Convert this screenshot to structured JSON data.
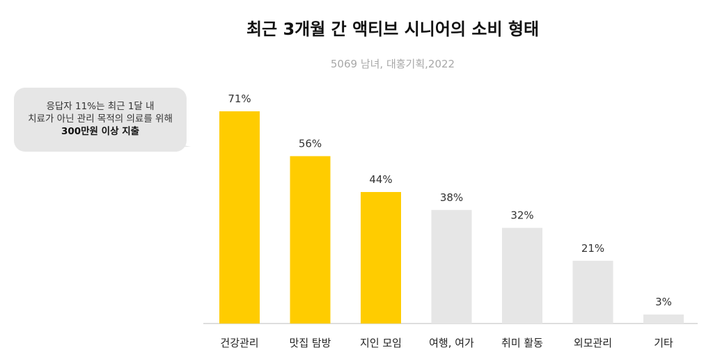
{
  "chart_data": {
    "type": "bar",
    "title": "최근 3개월 간 액티브 시니어의 소비 형태",
    "subtitle": "5069 남녀, 대홍기획,2022",
    "categories": [
      "건강관리",
      "맛집 탐방",
      "지인 모임",
      "여행, 여가",
      "취미 활동",
      "외모관리",
      "기타"
    ],
    "values": [
      71,
      56,
      44,
      38,
      32,
      21,
      3
    ],
    "value_labels": [
      "71%",
      "56%",
      "44%",
      "38%",
      "32%",
      "21%",
      "3%"
    ],
    "highlight": [
      true,
      true,
      true,
      false,
      false,
      false,
      false
    ],
    "colors": {
      "highlight": "#FFCC00",
      "normal": "#E6E6E6"
    },
    "ylim": [
      0,
      71
    ],
    "grid": false,
    "annotation": {
      "line1": "응답자 11%는 최근 1달 내",
      "line2": "치료가 아닌 관리 목적의 의료를 위해",
      "line3": "300만원 이상 지출"
    }
  }
}
